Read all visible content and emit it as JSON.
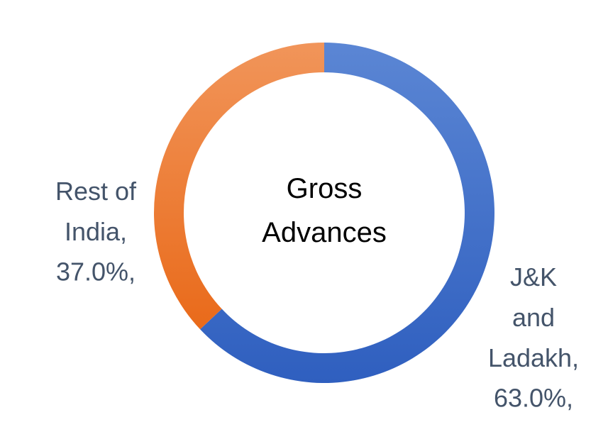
{
  "chart_data": {
    "type": "pie",
    "title": "Gross Advances",
    "categories": [
      "J&K and Ladakh,",
      "Rest of India,"
    ],
    "values": [
      63,
      37
    ],
    "value_labels": [
      "63.0%,",
      "37.0%,"
    ],
    "colors": [
      "#4472c4",
      "#ed7d31"
    ],
    "donut": true
  }
}
